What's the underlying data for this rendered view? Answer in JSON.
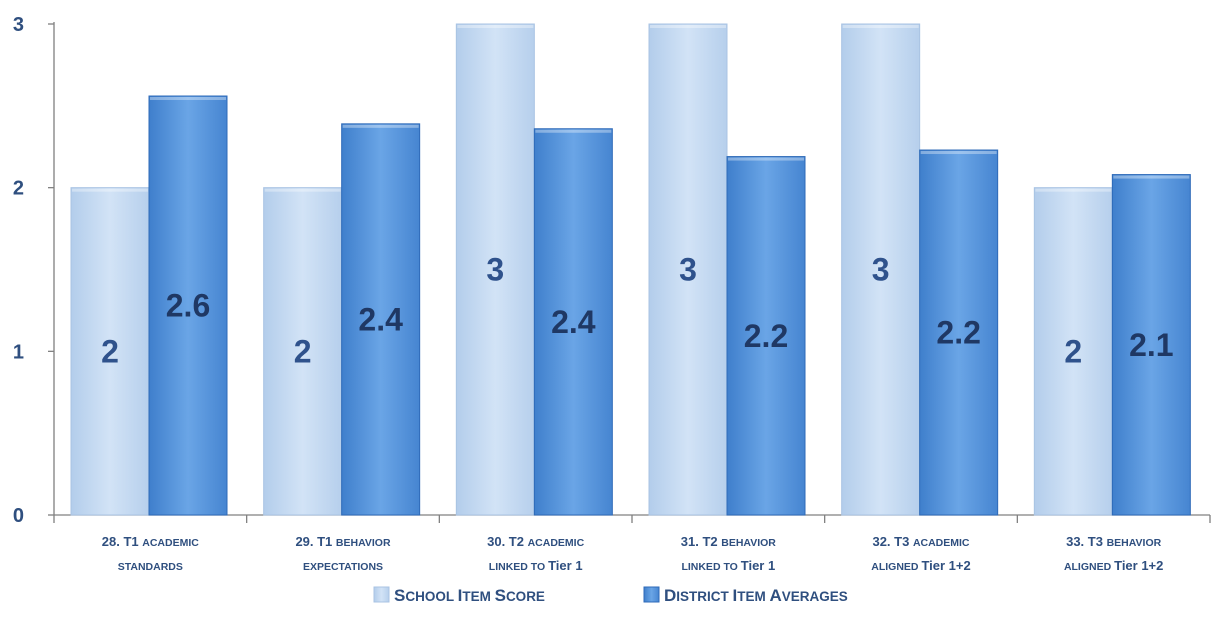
{
  "colors": {
    "school": "#c5d9f1",
    "school_edge": "#a9c3e3",
    "district": "#5b98dc",
    "district_edge": "#2e6ab8",
    "axis": "#808080",
    "text": "#2f4f7f"
  },
  "chart_data": {
    "type": "bar",
    "title": "",
    "xlabel": "",
    "ylabel": "",
    "ylim": [
      0,
      3
    ],
    "yticks": [
      "0",
      "1",
      "2",
      "3"
    ],
    "grid": false,
    "legend_position": "bottom",
    "categories": [
      [
        "28. T1 ",
        "academic",
        "standards",
        ""
      ],
      [
        "29. T1 ",
        "behavior",
        "expectations",
        ""
      ],
      [
        "30. T2 ",
        "academic",
        "linked to ",
        "Tier 1"
      ],
      [
        "31. T2 ",
        "behavior",
        "linked to ",
        "Tier 1"
      ],
      [
        "32. T3 ",
        "academic",
        "aligned ",
        "Tier 1+2"
      ],
      [
        "33. T3 ",
        "behavior",
        "aligned ",
        "Tier 1+2"
      ]
    ],
    "series": [
      {
        "name": [
          "S",
          "chool ",
          "I",
          "tem ",
          "S",
          "core"
        ],
        "values": [
          2,
          2,
          3,
          3,
          3,
          2
        ],
        "labels": [
          "2",
          "2",
          "3",
          "3",
          "3",
          "2"
        ]
      },
      {
        "name": [
          "D",
          "istrict ",
          "I",
          "tem ",
          "A",
          "verages"
        ],
        "values": [
          2.56,
          2.39,
          2.36,
          2.19,
          2.23,
          2.08
        ],
        "labels": [
          "2.6",
          "2.4",
          "2.4",
          "2.2",
          "2.2",
          "2.1"
        ]
      }
    ]
  }
}
